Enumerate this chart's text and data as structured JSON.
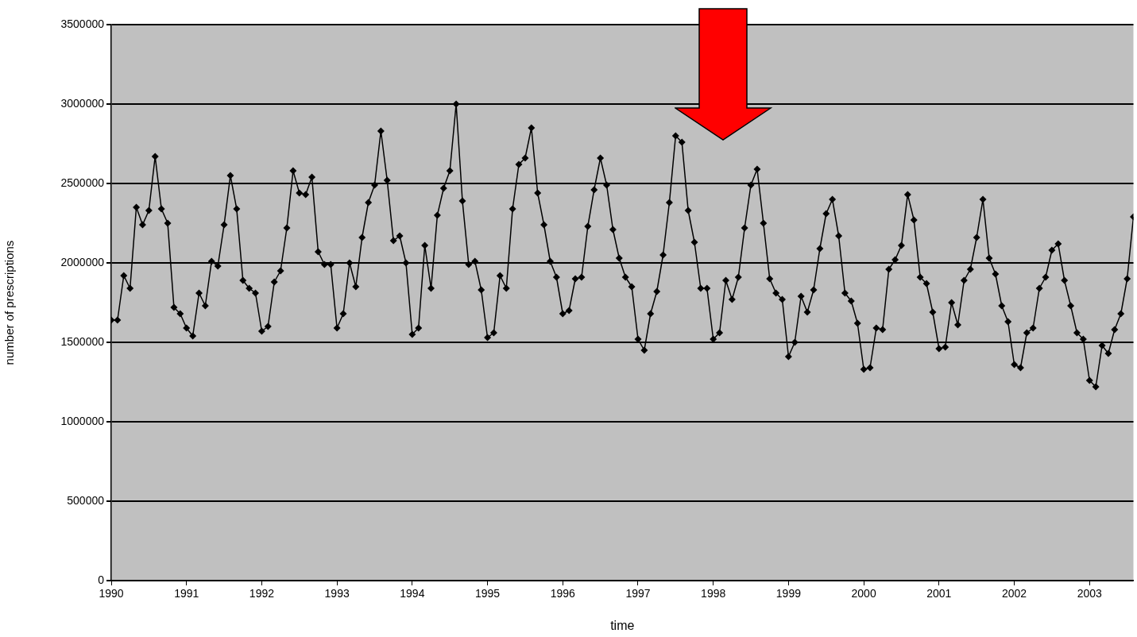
{
  "chart_data": {
    "type": "line",
    "xlabel": "time",
    "ylabel": "number of prescriptions",
    "x": [
      "1990-01",
      "1990-02",
      "1990-03",
      "1990-04",
      "1990-05",
      "1990-06",
      "1990-07",
      "1990-08",
      "1990-09",
      "1990-10",
      "1990-11",
      "1990-12",
      "1991-01",
      "1991-02",
      "1991-03",
      "1991-04",
      "1991-05",
      "1991-06",
      "1991-07",
      "1991-08",
      "1991-09",
      "1991-10",
      "1991-11",
      "1991-12",
      "1992-01",
      "1992-02",
      "1992-03",
      "1992-04",
      "1992-05",
      "1992-06",
      "1992-07",
      "1992-08",
      "1992-09",
      "1992-10",
      "1992-11",
      "1992-12",
      "1993-01",
      "1993-02",
      "1993-03",
      "1993-04",
      "1993-05",
      "1993-06",
      "1993-07",
      "1993-08",
      "1993-09",
      "1993-10",
      "1993-11",
      "1993-12",
      "1994-01",
      "1994-02",
      "1994-03",
      "1994-04",
      "1994-05",
      "1994-06",
      "1994-07",
      "1994-08",
      "1994-09",
      "1994-10",
      "1994-11",
      "1994-12",
      "1995-01",
      "1995-02",
      "1995-03",
      "1995-04",
      "1995-05",
      "1995-06",
      "1995-07",
      "1995-08",
      "1995-09",
      "1995-10",
      "1995-11",
      "1995-12",
      "1996-01",
      "1996-02",
      "1996-03",
      "1996-04",
      "1996-05",
      "1996-06",
      "1996-07",
      "1996-08",
      "1996-09",
      "1996-10",
      "1996-11",
      "1996-12",
      "1997-01",
      "1997-02",
      "1997-03",
      "1997-04",
      "1997-05",
      "1997-06",
      "1997-07",
      "1997-08",
      "1997-09",
      "1997-10",
      "1997-11",
      "1997-12",
      "1998-01",
      "1998-02",
      "1998-03",
      "1998-04",
      "1998-05",
      "1998-06",
      "1998-07",
      "1998-08",
      "1998-09",
      "1998-10",
      "1998-11",
      "1998-12",
      "1999-01",
      "1999-02",
      "1999-03",
      "1999-04",
      "1999-05",
      "1999-06",
      "1999-07",
      "1999-08",
      "1999-09",
      "1999-10",
      "1999-11",
      "1999-12",
      "2000-01",
      "2000-02",
      "2000-03",
      "2000-04",
      "2000-05",
      "2000-06",
      "2000-07",
      "2000-08",
      "2000-09",
      "2000-10",
      "2000-11",
      "2000-12",
      "2001-01",
      "2001-02",
      "2001-03",
      "2001-04",
      "2001-05",
      "2001-06",
      "2001-07",
      "2001-08",
      "2001-09",
      "2001-10",
      "2001-11",
      "2001-12",
      "2002-01",
      "2002-02",
      "2002-03",
      "2002-04",
      "2002-05",
      "2002-06",
      "2002-07",
      "2002-08",
      "2002-09",
      "2002-10",
      "2002-11",
      "2002-12",
      "2003-01",
      "2003-02",
      "2003-03",
      "2003-04",
      "2003-05",
      "2003-06",
      "2003-07",
      "2003-08"
    ],
    "series": [
      {
        "color": "#000000",
        "values": [
          1640000,
          1640000,
          1920000,
          1840000,
          2350000,
          2240000,
          2330000,
          2670000,
          2340000,
          2250000,
          1720000,
          1680000,
          1590000,
          1540000,
          1810000,
          1730000,
          2010000,
          1980000,
          2240000,
          2550000,
          2340000,
          1890000,
          1840000,
          1810000,
          1570000,
          1600000,
          1880000,
          1950000,
          2220000,
          2580000,
          2440000,
          2430000,
          2540000,
          2070000,
          1990000,
          1990000,
          1590000,
          1680000,
          2000000,
          1850000,
          2160000,
          2380000,
          2490000,
          2830000,
          2520000,
          2140000,
          2170000,
          2000000,
          1550000,
          1590000,
          2110000,
          1840000,
          2300000,
          2470000,
          2580000,
          3000000,
          2390000,
          1990000,
          2010000,
          1830000,
          1530000,
          1560000,
          1920000,
          1840000,
          2340000,
          2620000,
          2660000,
          2850000,
          2440000,
          2240000,
          2010000,
          1910000,
          1680000,
          1700000,
          1900000,
          1910000,
          2230000,
          2460000,
          2660000,
          2490000,
          2210000,
          2030000,
          1910000,
          1850000,
          1520000,
          1450000,
          1680000,
          1820000,
          2050000,
          2380000,
          2800000,
          2760000,
          2330000,
          2130000,
          1840000,
          1840000,
          1520000,
          1560000,
          1890000,
          1770000,
          1910000,
          2220000,
          2490000,
          2590000,
          2250000,
          1900000,
          1810000,
          1770000,
          1410000,
          1500000,
          1790000,
          1690000,
          1830000,
          2090000,
          2310000,
          2400000,
          2170000,
          1810000,
          1760000,
          1620000,
          1330000,
          1340000,
          1590000,
          1580000,
          1960000,
          2020000,
          2110000,
          2430000,
          2270000,
          1910000,
          1870000,
          1690000,
          1460000,
          1470000,
          1750000,
          1610000,
          1890000,
          1960000,
          2160000,
          2400000,
          2030000,
          1930000,
          1730000,
          1630000,
          1360000,
          1340000,
          1560000,
          1590000,
          1840000,
          1910000,
          2080000,
          2120000,
          1890000,
          1730000,
          1560000,
          1520000,
          1260000,
          1220000,
          1480000,
          1430000,
          1580000,
          1680000,
          1900000,
          2290000
        ]
      }
    ],
    "xlim": [
      "1990-01",
      "2003-08"
    ],
    "xticks": [
      "1990",
      "1991",
      "1992",
      "1993",
      "1994",
      "1995",
      "1996",
      "1997",
      "1998",
      "1999",
      "2000",
      "2001",
      "2002",
      "2003"
    ],
    "ylim": [
      0,
      3500000
    ],
    "yticks": [
      0,
      500000,
      1000000,
      1500000,
      2000000,
      2500000,
      3000000,
      3500000
    ],
    "grid": "y",
    "marker": "diamond",
    "line_style": "solid",
    "legend": false
  }
}
